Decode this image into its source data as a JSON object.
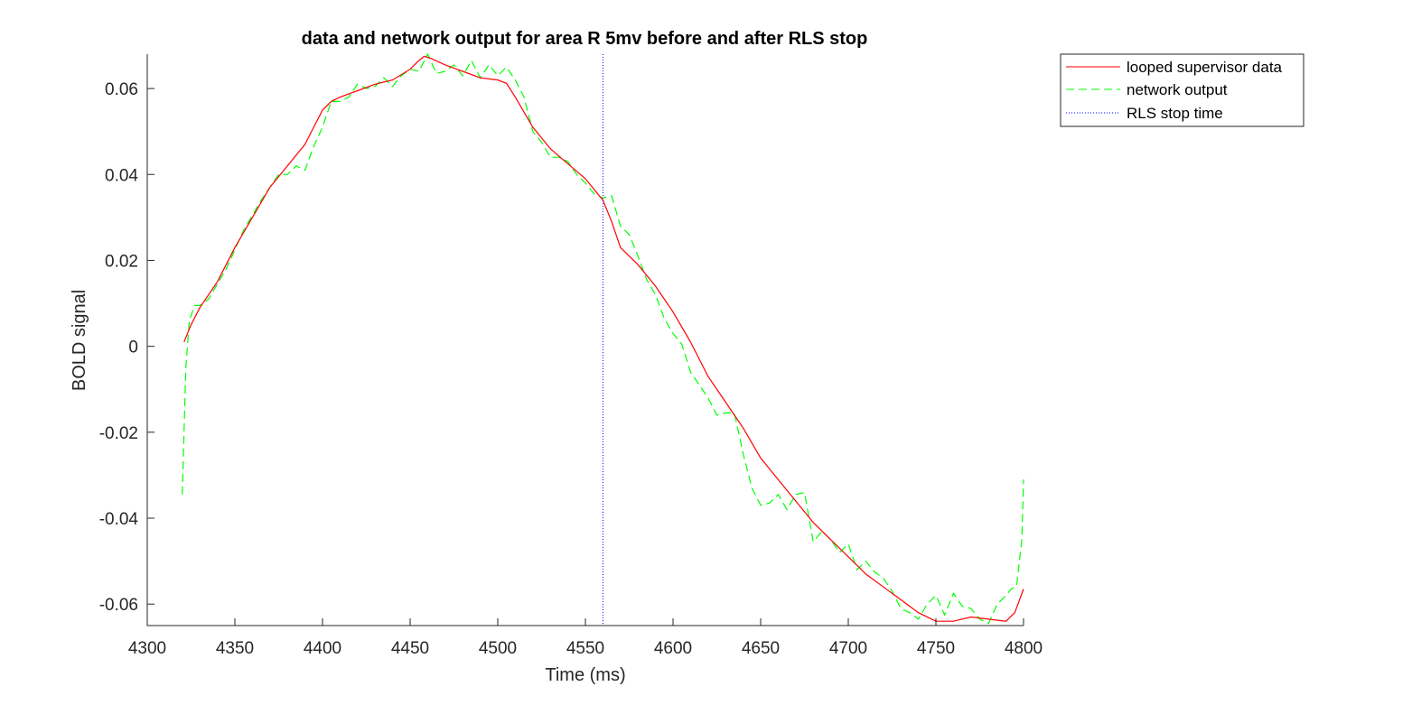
{
  "chart_data": {
    "type": "line",
    "title": "data and network output for area R 5mv before and after RLS stop",
    "xlabel": "Time (ms)",
    "ylabel": "BOLD signal",
    "xlim": [
      4300,
      4800
    ],
    "ylim": [
      -0.065,
      0.068
    ],
    "xticks": [
      4300,
      4350,
      4400,
      4450,
      4500,
      4550,
      4600,
      4650,
      4700,
      4750,
      4800
    ],
    "xtick_labels": [
      "4300",
      "4350",
      "4400",
      "4450",
      "4500",
      "4550",
      "4600",
      "4650",
      "4700",
      "4750",
      "4800"
    ],
    "yticks": [
      -0.06,
      -0.04,
      -0.02,
      0,
      0.02,
      0.04,
      0.06
    ],
    "ytick_labels": [
      "-0.06",
      "-0.04",
      "-0.02",
      "0",
      "0.02",
      "0.04",
      "0.06"
    ],
    "grid": false,
    "legend_position": "outside top-right",
    "vline_x": 4560,
    "series": [
      {
        "name": "looped supervisor data",
        "color": "#ff0000",
        "style": "solid",
        "x": [
          4321,
          4325,
          4330,
          4340,
          4350,
          4360,
          4370,
          4380,
          4390,
          4395,
          4400,
          4405,
          4410,
          4420,
          4430,
          4440,
          4450,
          4455,
          4458,
          4462,
          4470,
          4480,
          4490,
          4500,
          4505,
          4510,
          4520,
          4530,
          4540,
          4550,
          4556,
          4560,
          4565,
          4570,
          4580,
          4590,
          4600,
          4610,
          4620,
          4630,
          4640,
          4650,
          4660,
          4670,
          4680,
          4690,
          4700,
          4710,
          4720,
          4730,
          4740,
          4750,
          4760,
          4770,
          4780,
          4790,
          4795,
          4800
        ],
        "y": [
          0.001,
          0.005,
          0.009,
          0.015,
          0.023,
          0.03,
          0.037,
          0.042,
          0.047,
          0.051,
          0.055,
          0.057,
          0.058,
          0.0595,
          0.061,
          0.062,
          0.0645,
          0.0665,
          0.0675,
          0.067,
          0.0655,
          0.064,
          0.0625,
          0.062,
          0.0612,
          0.058,
          0.051,
          0.046,
          0.0425,
          0.039,
          0.036,
          0.034,
          0.029,
          0.023,
          0.019,
          0.014,
          0.008,
          0.001,
          -0.007,
          -0.013,
          -0.019,
          -0.026,
          -0.031,
          -0.036,
          -0.041,
          -0.045,
          -0.049,
          -0.053,
          -0.056,
          -0.059,
          -0.062,
          -0.064,
          -0.064,
          -0.063,
          -0.0635,
          -0.064,
          -0.062,
          -0.0565
        ]
      },
      {
        "name": "network output",
        "color": "#00ff00",
        "style": "dashed",
        "x": [
          4320,
          4322,
          4324,
          4327,
          4330,
          4335,
          4340,
          4345,
          4350,
          4355,
          4360,
          4365,
          4370,
          4375,
          4380,
          4385,
          4390,
          4395,
          4400,
          4405,
          4410,
          4415,
          4420,
          4425,
          4430,
          4435,
          4440,
          4445,
          4450,
          4455,
          4460,
          4465,
          4470,
          4475,
          4480,
          4485,
          4490,
          4495,
          4500,
          4505,
          4510,
          4515,
          4520,
          4525,
          4530,
          4535,
          4540,
          4545,
          4550,
          4555,
          4560,
          4565,
          4570,
          4575,
          4580,
          4585,
          4590,
          4595,
          4600,
          4605,
          4610,
          4615,
          4620,
          4625,
          4630,
          4635,
          4640,
          4645,
          4650,
          4655,
          4660,
          4665,
          4670,
          4675,
          4680,
          4685,
          4690,
          4695,
          4700,
          4705,
          4710,
          4715,
          4720,
          4725,
          4730,
          4735,
          4740,
          4745,
          4750,
          4755,
          4760,
          4765,
          4770,
          4775,
          4780,
          4785,
          4790,
          4793,
          4796,
          4799,
          4800
        ],
        "y": [
          -0.0345,
          -0.005,
          0.006,
          0.0095,
          0.0095,
          0.011,
          0.0145,
          0.018,
          0.0225,
          0.027,
          0.0305,
          0.034,
          0.037,
          0.04,
          0.04,
          0.042,
          0.041,
          0.0465,
          0.051,
          0.057,
          0.057,
          0.058,
          0.061,
          0.06,
          0.0605,
          0.0625,
          0.0605,
          0.063,
          0.0645,
          0.064,
          0.068,
          0.0635,
          0.064,
          0.0655,
          0.063,
          0.0665,
          0.0625,
          0.0655,
          0.063,
          0.065,
          0.062,
          0.058,
          0.05,
          0.0475,
          0.044,
          0.044,
          0.043,
          0.04,
          0.038,
          0.0355,
          0.0345,
          0.035,
          0.028,
          0.026,
          0.021,
          0.0155,
          0.012,
          0.0065,
          0.003,
          0.0005,
          -0.006,
          -0.009,
          -0.012,
          -0.016,
          -0.0155,
          -0.0155,
          -0.025,
          -0.033,
          -0.037,
          -0.0365,
          -0.0345,
          -0.038,
          -0.0345,
          -0.034,
          -0.0455,
          -0.043,
          -0.045,
          -0.048,
          -0.046,
          -0.052,
          -0.05,
          -0.0525,
          -0.054,
          -0.057,
          -0.061,
          -0.062,
          -0.0635,
          -0.06,
          -0.058,
          -0.0625,
          -0.0575,
          -0.0605,
          -0.061,
          -0.0635,
          -0.0645,
          -0.06,
          -0.058,
          -0.0565,
          -0.056,
          -0.045,
          -0.031
        ]
      }
    ],
    "vline": {
      "name": "RLS stop time",
      "color": "#0000ff",
      "style": "dotted"
    }
  }
}
